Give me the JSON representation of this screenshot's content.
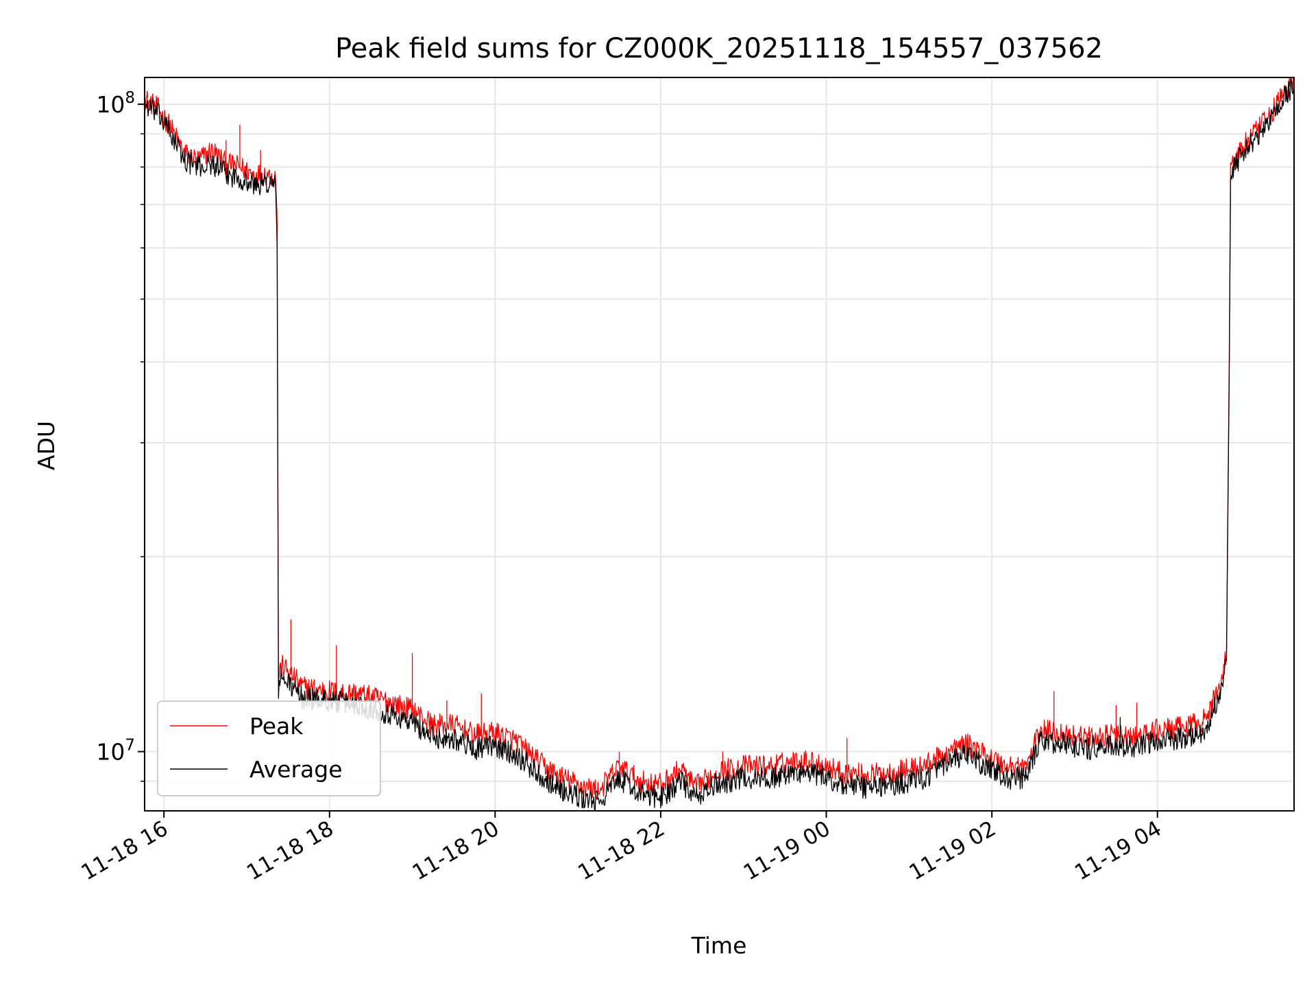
{
  "chart_data": {
    "type": "line",
    "title": "Peak field sums for CZ000K_20251118_154557_037562",
    "xlabel": "Time",
    "ylabel": "ADU",
    "y_scale": "log",
    "ylim": [
      8100000,
      110000000
    ],
    "xlim": [
      "2025-11-18 15:46",
      "2025-11-19 05:39"
    ],
    "x_tick_labels": [
      "11-18 16",
      "11-18 18",
      "11-18 20",
      "11-18 22",
      "11-19 00",
      "11-19 02",
      "11-19 04"
    ],
    "x_tick_times": [
      "2025-11-18 16:00",
      "2025-11-18 18:00",
      "2025-11-18 20:00",
      "2025-11-18 22:00",
      "2025-11-19 00:00",
      "2025-11-19 02:00",
      "2025-11-19 04:00"
    ],
    "y_tick_labels": [
      {
        "base": "10",
        "exp": "7",
        "value": 10000000
      },
      {
        "base": "10",
        "exp": "8",
        "value": 100000000
      }
    ],
    "grid": true,
    "legend_position": "lower-left",
    "series": [
      {
        "name": "Peak",
        "color": "#ff0000",
        "points": [
          [
            "2025-11-18 15:46",
            102000000
          ],
          [
            "2025-11-18 15:55",
            99000000
          ],
          [
            "2025-11-18 16:05",
            92000000
          ],
          [
            "2025-11-18 16:15",
            84000000
          ],
          [
            "2025-11-18 16:25",
            82000000
          ],
          [
            "2025-11-18 16:35",
            85000000
          ],
          [
            "2025-11-18 16:45",
            81000000
          ],
          [
            "2025-11-18 16:55",
            80000000
          ],
          [
            "2025-11-18 17:05",
            78000000
          ],
          [
            "2025-11-18 17:15",
            78000000
          ],
          [
            "2025-11-18 17:21",
            77000000
          ],
          [
            "2025-11-18 17:22",
            66000000
          ],
          [
            "2025-11-18 17:23",
            13000000
          ],
          [
            "2025-11-18 17:25",
            13600000
          ],
          [
            "2025-11-18 17:30",
            13300000
          ],
          [
            "2025-11-18 17:40",
            12600000
          ],
          [
            "2025-11-18 18:00",
            12400000
          ],
          [
            "2025-11-18 18:20",
            12300000
          ],
          [
            "2025-11-18 18:40",
            12000000
          ],
          [
            "2025-11-18 19:00",
            11600000
          ],
          [
            "2025-11-18 19:15",
            11000000
          ],
          [
            "2025-11-18 19:30",
            11000000
          ],
          [
            "2025-11-18 19:45",
            10600000
          ],
          [
            "2025-11-18 20:00",
            10700000
          ],
          [
            "2025-11-18 20:15",
            10400000
          ],
          [
            "2025-11-18 20:30",
            9700000
          ],
          [
            "2025-11-18 20:45",
            9200000
          ],
          [
            "2025-11-18 21:00",
            8900000
          ],
          [
            "2025-11-18 21:15",
            8700000
          ],
          [
            "2025-11-18 21:30",
            9500000
          ],
          [
            "2025-11-18 21:45",
            9000000
          ],
          [
            "2025-11-18 22:00",
            8900000
          ],
          [
            "2025-11-18 22:15",
            9400000
          ],
          [
            "2025-11-18 22:25",
            8800000
          ],
          [
            "2025-11-18 22:40",
            9300000
          ],
          [
            "2025-11-18 23:00",
            9500000
          ],
          [
            "2025-11-18 23:20",
            9500000
          ],
          [
            "2025-11-18 23:40",
            9700000
          ],
          [
            "2025-11-18 23:55",
            9600000
          ],
          [
            "2025-11-19 00:10",
            9300000
          ],
          [
            "2025-11-19 00:30",
            9200000
          ],
          [
            "2025-11-19 00:50",
            9300000
          ],
          [
            "2025-11-19 01:10",
            9500000
          ],
          [
            "2025-11-19 01:30",
            10000000
          ],
          [
            "2025-11-19 01:40",
            10300000
          ],
          [
            "2025-11-19 01:55",
            9900000
          ],
          [
            "2025-11-19 02:10",
            9500000
          ],
          [
            "2025-11-19 02:25",
            9500000
          ],
          [
            "2025-11-19 02:35",
            10800000
          ],
          [
            "2025-11-19 02:50",
            10700000
          ],
          [
            "2025-11-19 03:10",
            10500000
          ],
          [
            "2025-11-19 03:30",
            10600000
          ],
          [
            "2025-11-19 03:45",
            10500000
          ],
          [
            "2025-11-19 04:00",
            10800000
          ],
          [
            "2025-11-19 04:20",
            10900000
          ],
          [
            "2025-11-19 04:35",
            11200000
          ],
          [
            "2025-11-19 04:45",
            12600000
          ],
          [
            "2025-11-19 04:50",
            14200000
          ],
          [
            "2025-11-19 04:52",
            40000000
          ],
          [
            "2025-11-19 04:53",
            80000000
          ],
          [
            "2025-11-19 05:00",
            85000000
          ],
          [
            "2025-11-19 05:10",
            90000000
          ],
          [
            "2025-11-19 05:20",
            95000000
          ],
          [
            "2025-11-19 05:30",
            103000000
          ],
          [
            "2025-11-19 05:39",
            108000000
          ]
        ],
        "spikes": [
          [
            "2025-11-18 16:45",
            88000000
          ],
          [
            "2025-11-18 16:55",
            93000000
          ],
          [
            "2025-11-18 17:10",
            85000000
          ],
          [
            "2025-11-18 17:32",
            16000000
          ],
          [
            "2025-11-18 18:05",
            14600000
          ],
          [
            "2025-11-18 19:00",
            14200000
          ],
          [
            "2025-11-18 19:25",
            12000000
          ],
          [
            "2025-11-18 19:50",
            12300000
          ],
          [
            "2025-11-18 21:30",
            10000000
          ],
          [
            "2025-11-18 22:45",
            10000000
          ],
          [
            "2025-11-19 00:15",
            10500000
          ],
          [
            "2025-11-19 02:45",
            12400000
          ],
          [
            "2025-11-19 03:30",
            11800000
          ],
          [
            "2025-11-19 03:45",
            11900000
          ]
        ]
      },
      {
        "name": "Average",
        "color": "#000000",
        "points": [
          [
            "2025-11-18 15:46",
            100000000
          ],
          [
            "2025-11-18 15:55",
            97000000
          ],
          [
            "2025-11-18 16:05",
            90000000
          ],
          [
            "2025-11-18 16:15",
            82000000
          ],
          [
            "2025-11-18 16:25",
            80000000
          ],
          [
            "2025-11-18 16:35",
            81000000
          ],
          [
            "2025-11-18 16:45",
            78000000
          ],
          [
            "2025-11-18 16:55",
            77000000
          ],
          [
            "2025-11-18 17:05",
            75000000
          ],
          [
            "2025-11-18 17:15",
            75500000
          ],
          [
            "2025-11-18 17:21",
            75000000
          ],
          [
            "2025-11-18 17:22",
            60000000
          ],
          [
            "2025-11-18 17:23",
            12500000
          ],
          [
            "2025-11-18 17:25",
            13000000
          ],
          [
            "2025-11-18 17:30",
            12800000
          ],
          [
            "2025-11-18 17:40",
            12100000
          ],
          [
            "2025-11-18 18:00",
            12000000
          ],
          [
            "2025-11-18 18:20",
            11800000
          ],
          [
            "2025-11-18 18:40",
            11500000
          ],
          [
            "2025-11-18 19:00",
            11100000
          ],
          [
            "2025-11-18 19:15",
            10500000
          ],
          [
            "2025-11-18 19:30",
            10500000
          ],
          [
            "2025-11-18 19:45",
            10100000
          ],
          [
            "2025-11-18 20:00",
            10200000
          ],
          [
            "2025-11-18 20:15",
            9900000
          ],
          [
            "2025-11-18 20:30",
            9300000
          ],
          [
            "2025-11-18 20:45",
            8800000
          ],
          [
            "2025-11-18 21:00",
            8500000
          ],
          [
            "2025-11-18 21:15",
            8350000
          ],
          [
            "2025-11-18 21:30",
            9100000
          ],
          [
            "2025-11-18 21:45",
            8600000
          ],
          [
            "2025-11-18 22:00",
            8500000
          ],
          [
            "2025-11-18 22:15",
            9000000
          ],
          [
            "2025-11-18 22:25",
            8450000
          ],
          [
            "2025-11-18 22:40",
            8900000
          ],
          [
            "2025-11-18 23:00",
            9100000
          ],
          [
            "2025-11-18 23:20",
            9100000
          ],
          [
            "2025-11-18 23:40",
            9300000
          ],
          [
            "2025-11-18 23:55",
            9200000
          ],
          [
            "2025-11-19 00:10",
            8900000
          ],
          [
            "2025-11-19 00:30",
            8800000
          ],
          [
            "2025-11-19 00:50",
            8900000
          ],
          [
            "2025-11-19 01:10",
            9100000
          ],
          [
            "2025-11-19 01:30",
            9600000
          ],
          [
            "2025-11-19 01:40",
            9900000
          ],
          [
            "2025-11-19 01:55",
            9500000
          ],
          [
            "2025-11-19 02:10",
            9100000
          ],
          [
            "2025-11-19 02:25",
            9100000
          ],
          [
            "2025-11-19 02:35",
            10400000
          ],
          [
            "2025-11-19 02:50",
            10300000
          ],
          [
            "2025-11-19 03:10",
            10100000
          ],
          [
            "2025-11-19 03:30",
            10200000
          ],
          [
            "2025-11-19 03:45",
            10100000
          ],
          [
            "2025-11-19 04:00",
            10400000
          ],
          [
            "2025-11-19 04:20",
            10500000
          ],
          [
            "2025-11-19 04:35",
            10800000
          ],
          [
            "2025-11-19 04:45",
            12200000
          ],
          [
            "2025-11-19 04:50",
            13800000
          ],
          [
            "2025-11-19 04:52",
            38000000
          ],
          [
            "2025-11-19 04:53",
            78000000
          ],
          [
            "2025-11-19 05:00",
            83000000
          ],
          [
            "2025-11-19 05:10",
            88000000
          ],
          [
            "2025-11-19 05:20",
            93000000
          ],
          [
            "2025-11-19 05:30",
            101000000
          ],
          [
            "2025-11-19 05:39",
            107000000
          ]
        ],
        "spikes": [
          [
            "2025-11-19 03:33",
            11300000
          ]
        ]
      }
    ]
  }
}
